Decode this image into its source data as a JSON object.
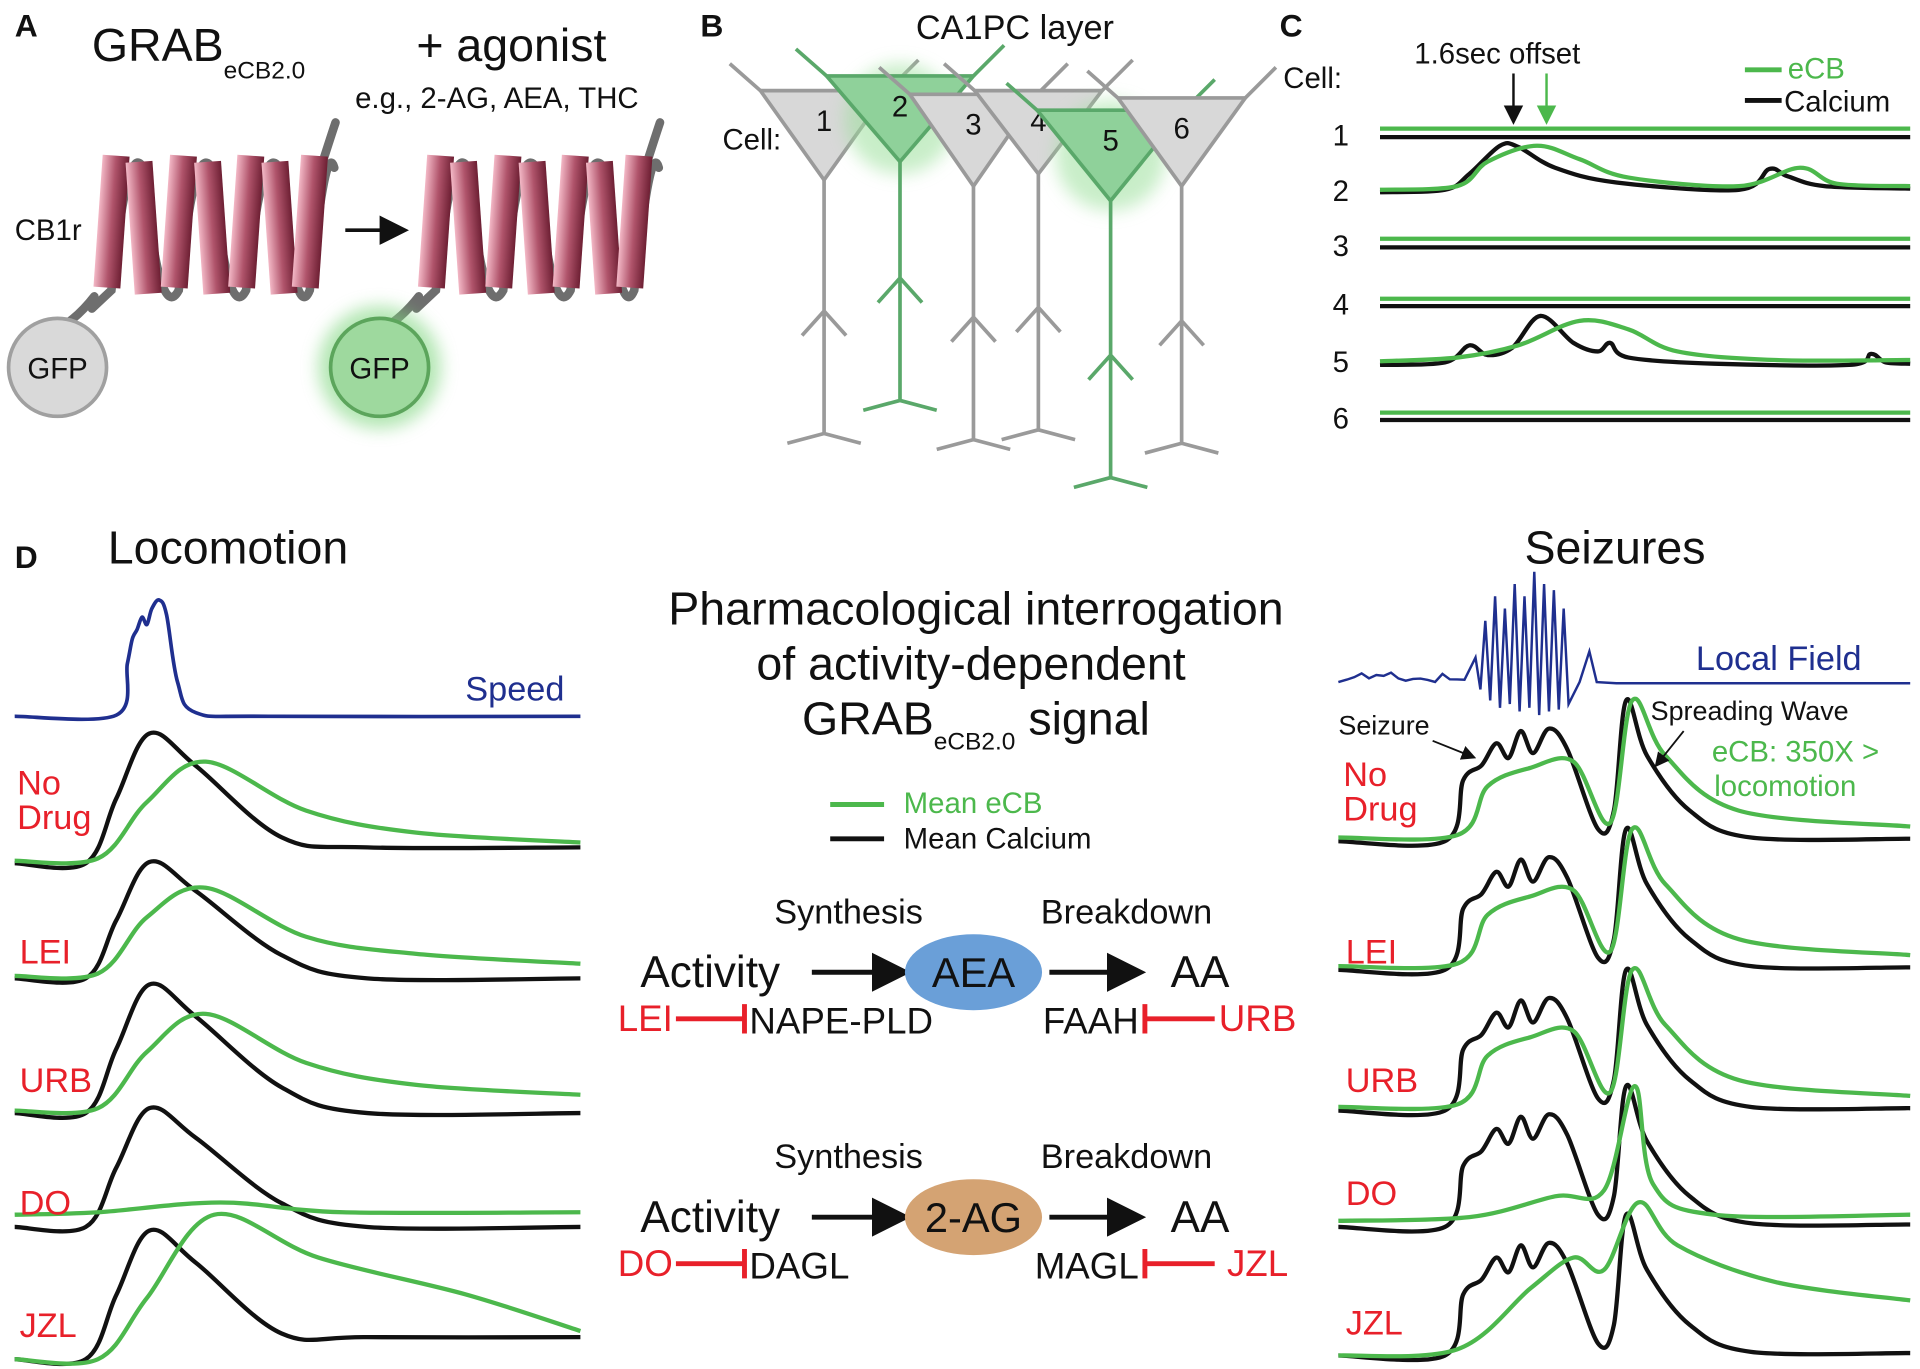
{
  "colors": {
    "green": "#4cb84c",
    "black": "#111111",
    "red": "#e8202a",
    "blue": "#1f2f8f",
    "aea": "#6a9fd8",
    "twoag": "#d4a373",
    "helix": "#8a3348"
  },
  "panelA": {
    "label": "A",
    "title_main": "GRAB",
    "title_sub": "eCB2.0",
    "agonist": "+ agonist",
    "examples": "e.g., 2-AG, AEA, THC",
    "receptor": "CB1r",
    "gfp_left": "GFP",
    "gfp_right": "GFP"
  },
  "panelB": {
    "label": "B",
    "title": "CA1PC layer",
    "cell_label": "Cell:",
    "cells": [
      "1",
      "2",
      "3",
      "4",
      "5",
      "6"
    ]
  },
  "panelC": {
    "label": "C",
    "cell_label": "Cell:",
    "offset_note": "1.6sec offset",
    "legend": {
      "ecb": "eCB",
      "calcium": "Calcium"
    },
    "rows": [
      "1",
      "2",
      "3",
      "4",
      "5",
      "6"
    ]
  },
  "panelD": {
    "label": "D",
    "locomotion_title": "Locomotion",
    "seizures_title": "Seizures",
    "speed_label": "Speed",
    "local_field_label": "Local Field",
    "conditions": [
      "No Drug",
      "LEI",
      "URB",
      "DO",
      "JZL"
    ],
    "no_drug_line1": "No",
    "no_drug_line2": "Drug",
    "seizure_annot": "Seizure",
    "spreading_annot": "Spreading Wave",
    "ecb_annot_line1": "eCB: 350X  >",
    "ecb_annot_line2": "locomotion",
    "center": {
      "title_line1": "Pharmacological interrogation",
      "title_line2": "of activity-dependent",
      "title_line3_main": "GRAB",
      "title_line3_sub": "eCB2.0",
      "title_line3_end": " signal",
      "legend_ecb": "Mean eCB",
      "legend_calcium": "Mean Calcium",
      "aea_pathway": {
        "synthesis": "Synthesis",
        "breakdown": "Breakdown",
        "activity": "Activity",
        "molecule": "AEA",
        "product": "AA",
        "inhibitor1": "LEI",
        "enzyme1": "NAPE-PLD",
        "enzyme2": "FAAH",
        "inhibitor2": "URB"
      },
      "ag_pathway": {
        "synthesis": "Synthesis",
        "breakdown": "Breakdown",
        "activity": "Activity",
        "molecule": "2-AG",
        "product": "AA",
        "inhibitor1": "DO",
        "enzyme1": "DAGL",
        "enzyme2": "MAGL",
        "inhibitor2": "JZL"
      }
    }
  }
}
